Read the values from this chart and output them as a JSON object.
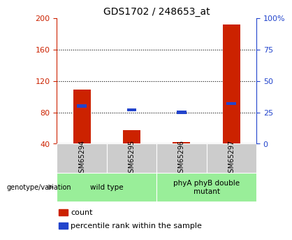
{
  "title": "GDS1702 / 248653_at",
  "categories": [
    "GSM65294",
    "GSM65295",
    "GSM65296",
    "GSM65297"
  ],
  "count_values": [
    109,
    57,
    42,
    192
  ],
  "percentile_values": [
    30,
    27,
    25,
    32
  ],
  "ylim_left": [
    40,
    200
  ],
  "ylim_right": [
    0,
    100
  ],
  "yticks_left": [
    40,
    80,
    120,
    160,
    200
  ],
  "yticks_right": [
    0,
    25,
    50,
    75,
    100
  ],
  "yticklabels_right": [
    "0",
    "25",
    "50",
    "75",
    "100%"
  ],
  "bar_color_red": "#cc2200",
  "bar_color_blue": "#2244cc",
  "left_tick_color": "#cc2200",
  "right_tick_color": "#2244cc",
  "genotype_groups": [
    {
      "label": "wild type",
      "indices": [
        0,
        1
      ]
    },
    {
      "label": "phyA phyB double\nmutant",
      "indices": [
        2,
        3
      ]
    }
  ],
  "genotype_label": "genotype/variation",
  "legend_count": "count",
  "legend_percentile": "percentile rank within the sample",
  "group_bg_color": "#99ee99",
  "sample_bg_color": "#cccccc",
  "bar_width": 0.35
}
